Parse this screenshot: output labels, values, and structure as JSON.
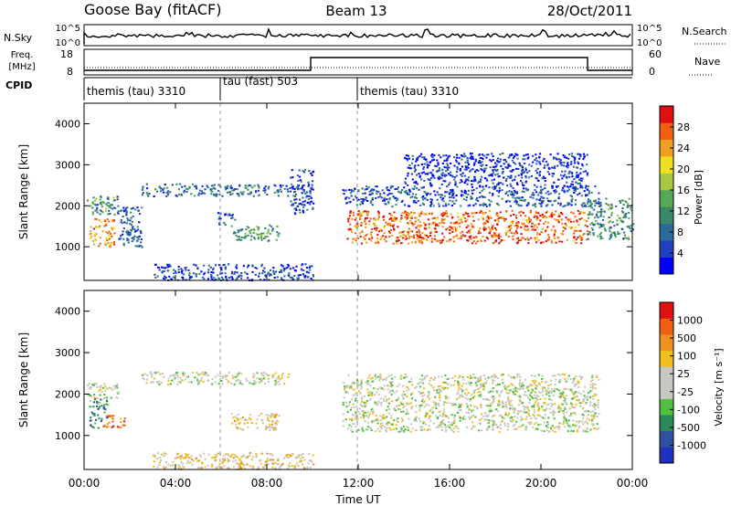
{
  "header": {
    "station": "Goose Bay (fitACF)",
    "beam": "Beam 13",
    "date": "28/Oct/2011"
  },
  "top_panels": {
    "nsky": {
      "label": "N.Sky",
      "right_label": "N.Search",
      "ticks_left": [
        "10^5",
        "10^0"
      ],
      "ticks_right": [
        "10^5",
        "10^0"
      ]
    },
    "freq": {
      "label_line1": "Freq.",
      "label_line2": "[MHz]",
      "ticks_left": [
        "18",
        "8"
      ],
      "ticks_right": [
        "60",
        "0"
      ],
      "right_label": "Nave"
    },
    "cpid": {
      "label": "CPID",
      "segments": [
        {
          "label": "themis (tau) 3310",
          "start_hour": 0
        },
        {
          "label": "tau (fast) 503",
          "start_hour": 6
        },
        {
          "label": "themis (tau) 3310",
          "start_hour": 12
        }
      ]
    }
  },
  "chart_data": [
    {
      "type": "heatmap",
      "title": "",
      "xlabel": "Time UT",
      "ylabel": "Slant Range [km]",
      "x_ticks": [
        "00:00",
        "04:00",
        "08:00",
        "12:00",
        "16:00",
        "20:00",
        "00:00"
      ],
      "x_range_hours": [
        0,
        24
      ],
      "y_ticks": [
        1000,
        2000,
        3000,
        4000
      ],
      "y_range_km": [
        180,
        4500
      ],
      "colorbar": {
        "label": "Power [dB]",
        "ticks": [
          "28",
          "24",
          "20",
          "16",
          "12",
          "8",
          "4"
        ],
        "colors": [
          "#0000ff",
          "#2040c0",
          "#2a6b9a",
          "#3a8a6a",
          "#55a855",
          "#a8c840",
          "#f0e020",
          "#f0a020",
          "#f06010",
          "#e01010"
        ]
      },
      "echo_regions": [
        {
          "t0": 0.2,
          "t1": 1.3,
          "r0": 1000,
          "r1": 1700,
          "level": 0.75
        },
        {
          "t0": 0.1,
          "t1": 1.5,
          "r0": 1800,
          "r1": 2250,
          "level": 0.35
        },
        {
          "t0": 1.5,
          "t1": 2.5,
          "r0": 1000,
          "r1": 2000,
          "level": 0.2
        },
        {
          "t0": 2.5,
          "t1": 9.0,
          "r0": 2250,
          "r1": 2550,
          "level": 0.25
        },
        {
          "t0": 6.4,
          "t1": 8.5,
          "r0": 1150,
          "r1": 1550,
          "level": 0.4
        },
        {
          "t0": 5.8,
          "t1": 6.6,
          "r0": 1550,
          "r1": 1850,
          "level": 0.2
        },
        {
          "t0": 9.0,
          "t1": 10.0,
          "r0": 1800,
          "r1": 2900,
          "level": 0.15
        },
        {
          "t0": 11.3,
          "t1": 22.5,
          "r0": 2000,
          "r1": 2500,
          "level": 0.2
        },
        {
          "t0": 11.5,
          "t1": 22.0,
          "r0": 1100,
          "r1": 1900,
          "level": 0.85
        },
        {
          "t0": 22.0,
          "t1": 24.0,
          "r0": 1200,
          "r1": 2200,
          "level": 0.35
        },
        {
          "t0": 3.0,
          "t1": 10.0,
          "r0": 200,
          "r1": 600,
          "level": 0.15
        },
        {
          "t0": 14.0,
          "t1": 22.0,
          "r0": 2500,
          "r1": 3300,
          "level": 0.12
        }
      ]
    },
    {
      "type": "heatmap",
      "title": "",
      "xlabel": "Time UT",
      "ylabel": "Slant Range [km]",
      "x_ticks": [
        "00:00",
        "04:00",
        "08:00",
        "12:00",
        "16:00",
        "20:00",
        "00:00"
      ],
      "x_range_hours": [
        0,
        24
      ],
      "y_ticks": [
        1000,
        2000,
        3000,
        4000
      ],
      "y_range_km": [
        180,
        4500
      ],
      "colorbar": {
        "label": "Velocity [m s⁻¹]",
        "ticks": [
          "1000",
          "500",
          "100",
          "25",
          "-25",
          "-100",
          "-500",
          "-1000"
        ],
        "colors": [
          "#2030c0",
          "#3050a0",
          "#2a8a5a",
          "#50c040",
          "#c8c8c0",
          "#c8c8c0",
          "#f0c020",
          "#f09020",
          "#f06010",
          "#e01010"
        ]
      },
      "echo_regions": [
        {
          "t0": 0.2,
          "t1": 1.0,
          "r0": 1200,
          "r1": 1900,
          "level": 0.25
        },
        {
          "t0": 0.8,
          "t1": 1.8,
          "r0": 1200,
          "r1": 1500,
          "level": 0.85
        },
        {
          "t0": 0.1,
          "t1": 1.5,
          "r0": 1900,
          "r1": 2300,
          "level": 0.5
        },
        {
          "t0": 2.5,
          "t1": 9.0,
          "r0": 2250,
          "r1": 2550,
          "level": 0.5
        },
        {
          "t0": 6.4,
          "t1": 8.5,
          "r0": 1150,
          "r1": 1550,
          "level": 0.6
        },
        {
          "t0": 11.3,
          "t1": 22.5,
          "r0": 1100,
          "r1": 2500,
          "level": 0.5
        },
        {
          "t0": 3.0,
          "t1": 10.0,
          "r0": 200,
          "r1": 600,
          "level": 0.6
        }
      ]
    }
  ]
}
